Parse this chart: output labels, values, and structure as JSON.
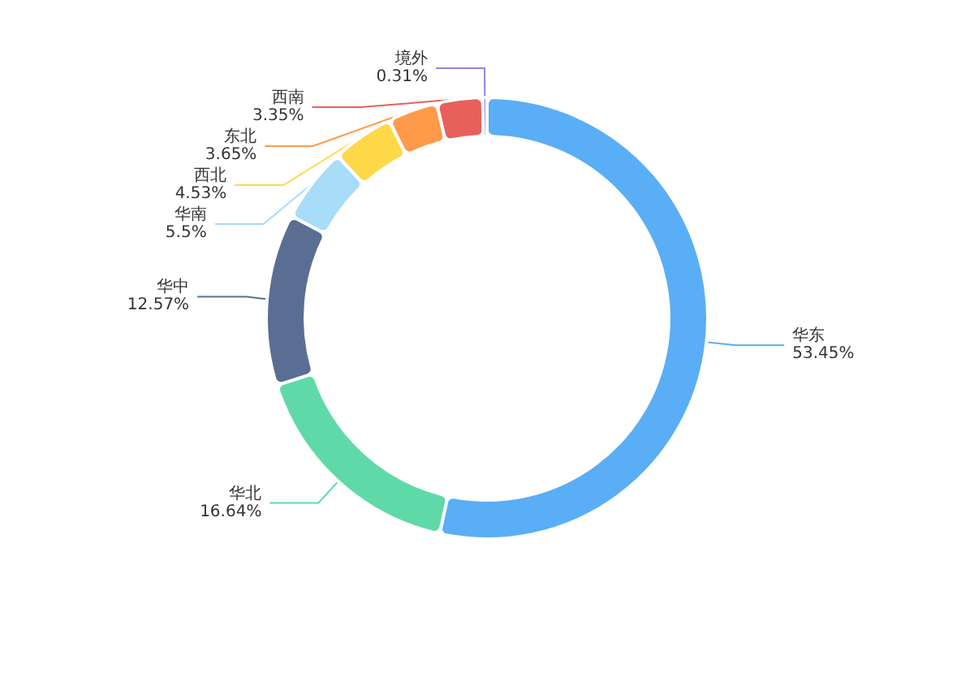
{
  "chart_data": {
    "type": "donut",
    "categories": [
      "华东",
      "华北",
      "华中",
      "华南",
      "西北",
      "东北",
      "西南",
      "境外"
    ],
    "values": [
      53.45,
      16.64,
      12.57,
      5.5,
      4.53,
      3.65,
      3.35,
      0.31
    ],
    "value_labels": [
      "53.45%",
      "16.64%",
      "12.57%",
      "5.5%",
      "4.53%",
      "3.65%",
      "3.35%",
      "0.31%"
    ],
    "colors": [
      "#5aaef5",
      "#5fd9a8",
      "#5a6e94",
      "#a8dcf8",
      "#ffd84a",
      "#ff9a4a",
      "#e8605a",
      "#9b7fe0"
    ],
    "legend": false
  }
}
